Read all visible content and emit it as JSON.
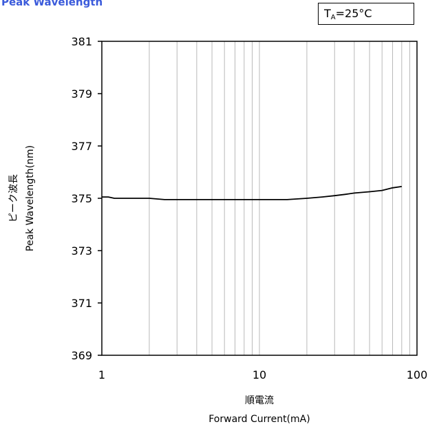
{
  "header": {
    "title": "Peak Wavelength",
    "condition_prefix": "T",
    "condition_sub": "A",
    "condition_suffix": "=25°C"
  },
  "chart_data": {
    "type": "line",
    "title": "Peak Wavelength",
    "xlabel_jp": "順電流",
    "xlabel": "Forward Current(mA)",
    "ylabel_jp": "ピーク波長",
    "ylabel": "Peak Wavelength(nm)",
    "x_scale": "log",
    "xlim": [
      1,
      100
    ],
    "ylim": [
      369,
      381
    ],
    "x_ticks": [
      1,
      10,
      100
    ],
    "x_tick_labels": [
      "1",
      "10",
      "100"
    ],
    "y_ticks": [
      369,
      371,
      373,
      375,
      377,
      379,
      381
    ],
    "y_tick_labels": [
      "369",
      "371",
      "373",
      "375",
      "377",
      "379",
      "381"
    ],
    "grid": true,
    "series": [
      {
        "x": [
          1,
          1.1,
          1.2,
          1.5,
          2,
          2.5,
          3,
          4,
          5,
          7,
          10,
          12,
          15,
          20,
          25,
          30,
          35,
          40,
          50,
          60,
          70,
          80
        ],
        "y": [
          375.05,
          375.05,
          375.0,
          375.0,
          375.0,
          374.95,
          374.95,
          374.95,
          374.95,
          374.95,
          374.95,
          374.95,
          374.95,
          375.0,
          375.05,
          375.1,
          375.15,
          375.2,
          375.25,
          375.3,
          375.4,
          375.45
        ]
      }
    ]
  }
}
